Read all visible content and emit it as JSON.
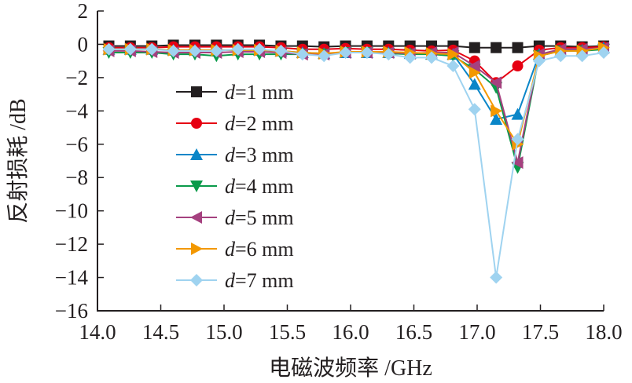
{
  "chart_data": {
    "type": "line",
    "xlabel": "电磁波频率 /GHz",
    "ylabel": "反射损耗 /dB",
    "xlim": [
      14.0,
      18.0
    ],
    "ylim": [
      -16,
      2
    ],
    "xticks": [
      "14.0",
      "14.5",
      "15.0",
      "15.5",
      "16.0",
      "16.5",
      "17.0",
      "17.5",
      "18.0"
    ],
    "yticks": [
      "2",
      "0",
      "−2",
      "−4",
      "−6",
      "−8",
      "−10",
      "−12",
      "−14",
      "−16"
    ],
    "grid": false,
    "legend_position": "center-left",
    "x": [
      14.09,
      14.26,
      14.43,
      14.6,
      14.77,
      14.94,
      15.11,
      15.28,
      15.45,
      15.62,
      15.79,
      15.96,
      16.13,
      16.3,
      16.47,
      16.64,
      16.81,
      16.98,
      17.15,
      17.32,
      17.49,
      17.66,
      17.83,
      18.0
    ],
    "series": [
      {
        "name": "d=1 mm",
        "label_var": "d",
        "label_rest": "=1 mm",
        "color": "#231f20",
        "marker": "square",
        "values": [
          -0.1,
          -0.1,
          -0.1,
          -0.05,
          -0.05,
          -0.05,
          -0.05,
          -0.05,
          -0.1,
          -0.1,
          -0.15,
          -0.1,
          -0.1,
          -0.1,
          -0.1,
          -0.1,
          -0.1,
          -0.2,
          -0.2,
          -0.2,
          -0.1,
          -0.1,
          -0.15,
          -0.1
        ]
      },
      {
        "name": "d=2 mm",
        "label_var": "d",
        "label_rest": "=2 mm",
        "color": "#e60012",
        "marker": "circle",
        "values": [
          -0.2,
          -0.2,
          -0.2,
          -0.15,
          -0.15,
          -0.15,
          -0.15,
          -0.15,
          -0.2,
          -0.3,
          -0.3,
          -0.25,
          -0.3,
          -0.3,
          -0.35,
          -0.4,
          -0.35,
          -1.0,
          -2.3,
          -1.3,
          -0.35,
          -0.2,
          -0.2,
          -0.15
        ]
      },
      {
        "name": "d=3 mm",
        "label_var": "d",
        "label_rest": "=3 mm",
        "color": "#0a86c8",
        "marker": "triangle-up",
        "values": [
          -0.3,
          -0.3,
          -0.3,
          -0.35,
          -0.35,
          -0.35,
          -0.35,
          -0.35,
          -0.4,
          -0.5,
          -0.55,
          -0.5,
          -0.5,
          -0.5,
          -0.55,
          -0.6,
          -0.6,
          -2.4,
          -4.5,
          -4.2,
          -0.6,
          -0.4,
          -0.35,
          -0.2
        ]
      },
      {
        "name": "d=4 mm",
        "label_var": "d",
        "label_rest": "=4 mm",
        "color": "#0a9a4a",
        "marker": "triangle-down",
        "values": [
          -0.5,
          -0.5,
          -0.5,
          -0.6,
          -0.6,
          -0.7,
          -0.6,
          -0.6,
          -0.6,
          -0.6,
          -0.6,
          -0.5,
          -0.5,
          -0.55,
          -0.6,
          -0.6,
          -0.7,
          -1.5,
          -2.6,
          -7.4,
          -0.7,
          -0.4,
          -0.4,
          -0.3
        ]
      },
      {
        "name": "d=5 mm",
        "label_var": "d",
        "label_rest": "=5 mm",
        "color": "#a5417f",
        "marker": "triangle-left",
        "values": [
          -0.4,
          -0.4,
          -0.45,
          -0.5,
          -0.5,
          -0.5,
          -0.45,
          -0.45,
          -0.5,
          -0.6,
          -0.6,
          -0.5,
          -0.5,
          -0.5,
          -0.55,
          -0.5,
          -0.5,
          -1.3,
          -2.3,
          -7.1,
          -0.6,
          -0.3,
          -0.3,
          -0.2
        ]
      },
      {
        "name": "d=6 mm",
        "label_var": "d",
        "label_rest": "=6 mm",
        "color": "#f39800",
        "marker": "triangle-right",
        "values": [
          -0.3,
          -0.3,
          -0.3,
          -0.35,
          -0.35,
          -0.35,
          -0.35,
          -0.35,
          -0.4,
          -0.5,
          -0.55,
          -0.45,
          -0.45,
          -0.45,
          -0.5,
          -0.55,
          -0.6,
          -1.7,
          -4.0,
          -6.0,
          -0.7,
          -0.4,
          -0.4,
          -0.2
        ]
      },
      {
        "name": "d=7 mm",
        "label_var": "d",
        "label_rest": "=7 mm",
        "color": "#9fd3f0",
        "marker": "diamond",
        "values": [
          -0.3,
          -0.3,
          -0.3,
          -0.4,
          -0.4,
          -0.4,
          -0.3,
          -0.3,
          -0.4,
          -0.6,
          -0.7,
          -0.5,
          -0.5,
          -0.6,
          -0.8,
          -0.8,
          -1.3,
          -3.9,
          -14.0,
          -5.7,
          -1.0,
          -0.7,
          -0.7,
          -0.5
        ]
      }
    ]
  }
}
